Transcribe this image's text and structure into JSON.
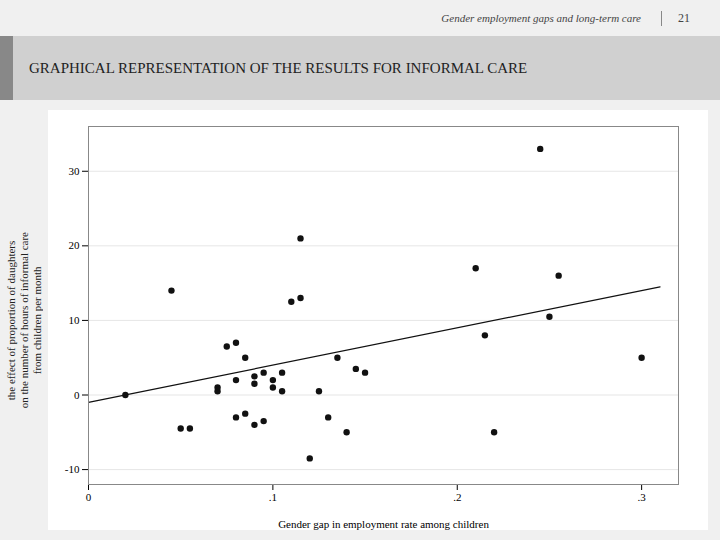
{
  "chart_data": {
    "type": "scatter",
    "title": "GRAPHICAL REPRESENTATION OF THE RESULTS FOR INFORMAL CARE",
    "subtitle": "Gender employment gaps and long-term care",
    "annotations": [
      "21"
    ],
    "xlabel": "Gender gap in employment rate among children",
    "ylabel": "the effect of proportion of daughters\non the number of hours of informal care\nfrom children per month",
    "xlim": [
      0,
      0.32
    ],
    "ylim": [
      -12,
      36
    ],
    "xticks": [
      0,
      {
        "value": 0.1,
        "label": ".1"
      },
      {
        "value": 0.2,
        "label": ".2"
      },
      {
        "value": 0.3,
        "label": ".3"
      }
    ],
    "yticks": [
      -10,
      0,
      10,
      20,
      30
    ],
    "grid": "y",
    "series": [
      {
        "type": "scatter",
        "marker": "circle",
        "color": "#111111",
        "x": [
          0.02,
          0.045,
          0.05,
          0.055,
          0.07,
          0.07,
          0.075,
          0.08,
          0.08,
          0.08,
          0.085,
          0.085,
          0.09,
          0.09,
          0.09,
          0.095,
          0.095,
          0.1,
          0.1,
          0.105,
          0.105,
          0.11,
          0.115,
          0.115,
          0.12,
          0.125,
          0.13,
          0.135,
          0.14,
          0.145,
          0.15,
          0.21,
          0.215,
          0.22,
          0.25,
          0.255,
          0.3,
          0.245
        ],
        "values": [
          0,
          14,
          -4.5,
          -4.5,
          0.5,
          1,
          6.5,
          7,
          2,
          -3,
          5,
          -2.5,
          1.5,
          2.5,
          -4,
          3,
          -3.5,
          2,
          1,
          3,
          0.5,
          12.5,
          21,
          13,
          -8.5,
          0.5,
          -3,
          5,
          -5,
          3.5,
          3,
          17,
          8,
          -5,
          10.5,
          16,
          5,
          33
        ]
      },
      {
        "type": "line",
        "line_style": "solid",
        "color": "#111111",
        "x": [
          0.0,
          0.31
        ],
        "values": [
          -1.0,
          14.5
        ]
      }
    ]
  }
}
